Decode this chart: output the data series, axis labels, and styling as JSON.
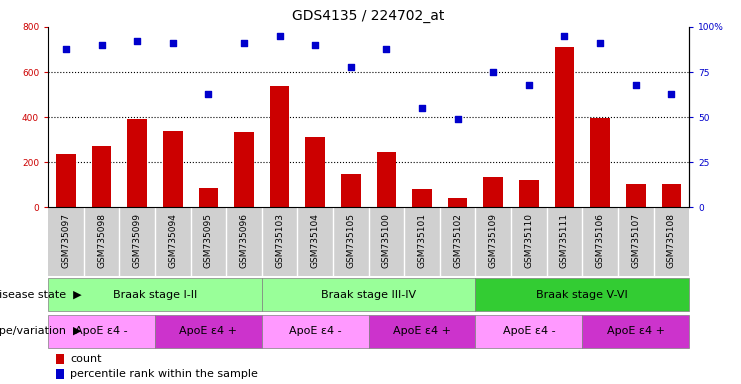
{
  "title": "GDS4135 / 224702_at",
  "samples": [
    "GSM735097",
    "GSM735098",
    "GSM735099",
    "GSM735094",
    "GSM735095",
    "GSM735096",
    "GSM735103",
    "GSM735104",
    "GSM735105",
    "GSM735100",
    "GSM735101",
    "GSM735102",
    "GSM735109",
    "GSM735110",
    "GSM735111",
    "GSM735106",
    "GSM735107",
    "GSM735108"
  ],
  "counts": [
    235,
    270,
    390,
    340,
    85,
    335,
    540,
    310,
    150,
    245,
    80,
    40,
    135,
    120,
    710,
    395,
    105,
    105
  ],
  "percentiles": [
    88,
    90,
    92,
    91,
    63,
    91,
    95,
    90,
    78,
    88,
    55,
    49,
    75,
    68,
    95,
    91,
    68,
    63
  ],
  "ylim_left": [
    0,
    800
  ],
  "ylim_right": [
    0,
    100
  ],
  "yticks_left": [
    0,
    200,
    400,
    600,
    800
  ],
  "ytick_labels_left": [
    "0",
    "200",
    "400",
    "600",
    "800"
  ],
  "yticks_right": [
    0,
    25,
    50,
    75,
    100
  ],
  "ytick_labels_right": [
    "0",
    "25",
    "50",
    "75",
    "100%"
  ],
  "bar_color": "#cc0000",
  "dot_color": "#0000cc",
  "disease_state_groups": [
    {
      "label": "Braak stage I-II",
      "start": 0,
      "end": 6,
      "color": "#99ff99"
    },
    {
      "label": "Braak stage III-IV",
      "start": 6,
      "end": 12,
      "color": "#99ff99"
    },
    {
      "label": "Braak stage V-VI",
      "start": 12,
      "end": 18,
      "color": "#33cc33"
    }
  ],
  "genotype_groups": [
    {
      "label": "ApoE ε4 -",
      "start": 0,
      "end": 3,
      "color": "#ff99ff"
    },
    {
      "label": "ApoE ε4 +",
      "start": 3,
      "end": 6,
      "color": "#cc33cc"
    },
    {
      "label": "ApoE ε4 -",
      "start": 6,
      "end": 9,
      "color": "#ff99ff"
    },
    {
      "label": "ApoE ε4 +",
      "start": 9,
      "end": 12,
      "color": "#cc33cc"
    },
    {
      "label": "ApoE ε4 -",
      "start": 12,
      "end": 15,
      "color": "#ff99ff"
    },
    {
      "label": "ApoE ε4 +",
      "start": 15,
      "end": 18,
      "color": "#cc33cc"
    }
  ],
  "legend_count_label": "count",
  "legend_pct_label": "percentile rank within the sample",
  "legend_count_color": "#cc0000",
  "legend_pct_color": "#0000cc",
  "disease_state_label": "disease state",
  "genotype_label": "genotype/variation",
  "title_fontsize": 10,
  "tick_fontsize": 6.5,
  "annotation_fontsize": 8,
  "legend_fontsize": 8,
  "xlabel_bg_color": "#d0d0d0",
  "n_samples": 18,
  "dot_size": 18
}
